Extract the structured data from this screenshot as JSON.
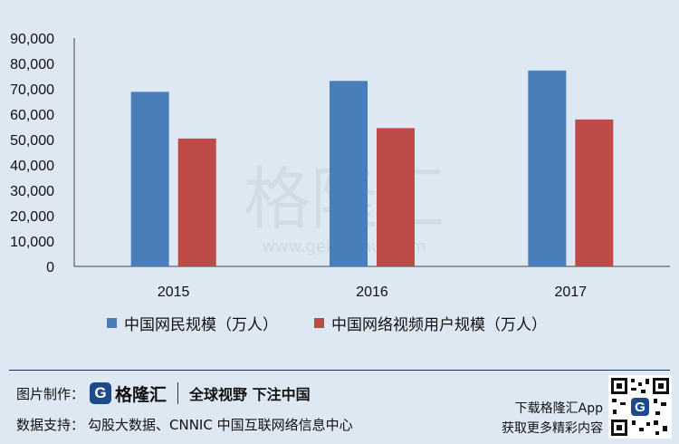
{
  "chart_data": {
    "type": "bar",
    "categories": [
      "2015",
      "2016",
      "2017"
    ],
    "series": [
      {
        "name": "中国网民规模（万人）",
        "values": [
          68800,
          73100,
          77200
        ],
        "color": "#4a7ebb"
      },
      {
        "name": "中国网络视频用户规模（万人）",
        "values": [
          50400,
          54500,
          57900
        ],
        "color": "#be4b48"
      }
    ],
    "ylim": [
      0,
      90000
    ],
    "yticks": [
      "0",
      "10,000",
      "20,000",
      "30,000",
      "40,000",
      "50,000",
      "60,000",
      "70,000",
      "80,000",
      "90,000"
    ],
    "ytick_values": [
      0,
      10000,
      20000,
      30000,
      40000,
      50000,
      60000,
      70000,
      80000,
      90000
    ],
    "grid": false,
    "legend_position": "bottom"
  },
  "watermark": {
    "main": "格隆汇",
    "url": "www.gelonghui.com"
  },
  "footer": {
    "credit_label": "图片制作：",
    "logo_letter": "G",
    "logo_name": "格隆汇",
    "slogan": "全球视野 下注中国",
    "source_label": "数据支持：",
    "source_text": "勾股大数据、CNNIC 中国互联网络信息中心",
    "download_line1": "下载格隆汇App",
    "download_line2": "获取更多精彩内容"
  }
}
